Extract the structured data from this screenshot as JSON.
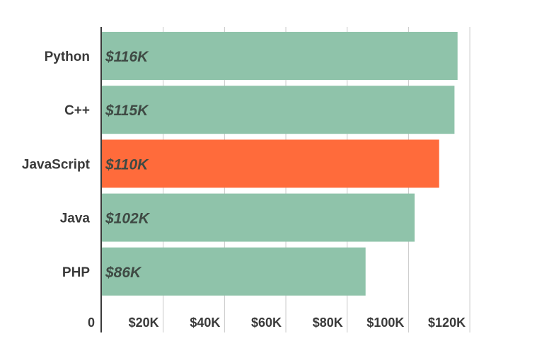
{
  "chart_data": {
    "type": "bar",
    "orientation": "horizontal",
    "categories": [
      "Python",
      "C++",
      "JavaScript",
      "Java",
      "PHP"
    ],
    "values": [
      116,
      115,
      110,
      102,
      86
    ],
    "value_labels": [
      "$116K",
      "$115K",
      "$110K",
      "$102K",
      "$86K"
    ],
    "highlight_index": 2,
    "xlim": [
      0,
      120
    ],
    "x_ticks": [
      0,
      20,
      40,
      60,
      80,
      100,
      120
    ],
    "x_tick_labels": [
      "0",
      "$20K",
      "$40K",
      "$60K",
      "$80K",
      "$100K",
      "$120K"
    ],
    "grid": "vertical",
    "colors": {
      "bar": "#8fc3aa",
      "highlight": "#ff6b3b"
    }
  }
}
